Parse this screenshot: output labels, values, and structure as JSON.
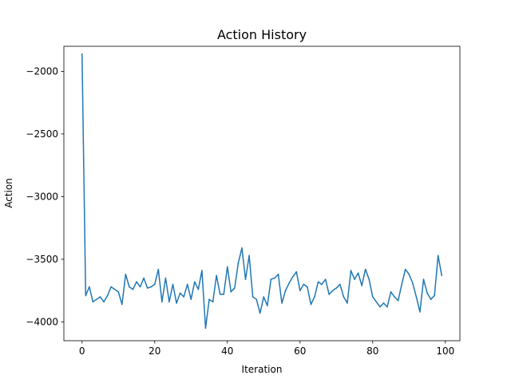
{
  "chart_data": {
    "type": "line",
    "title": "Action History",
    "xlabel": "Iteration",
    "ylabel": "Action",
    "xlim": [
      -5,
      104
    ],
    "ylim": [
      -4150,
      -1800
    ],
    "xticks": [
      0,
      20,
      40,
      60,
      80,
      100
    ],
    "yticks": [
      -4000,
      -3500,
      -3000,
      -2500,
      -2000
    ],
    "grid": false,
    "series": [
      {
        "color": "#1f77b4",
        "x": [
          0,
          1,
          2,
          3,
          4,
          5,
          6,
          7,
          8,
          9,
          10,
          11,
          12,
          13,
          14,
          15,
          16,
          17,
          18,
          19,
          20,
          21,
          22,
          23,
          24,
          25,
          26,
          27,
          28,
          29,
          30,
          31,
          32,
          33,
          34,
          35,
          36,
          37,
          38,
          39,
          40,
          41,
          42,
          43,
          44,
          45,
          46,
          47,
          48,
          49,
          50,
          51,
          52,
          53,
          54,
          55,
          56,
          57,
          58,
          59,
          60,
          61,
          62,
          63,
          64,
          65,
          66,
          67,
          68,
          69,
          70,
          71,
          72,
          73,
          74,
          75,
          76,
          77,
          78,
          79,
          80,
          81,
          82,
          83,
          84,
          85,
          86,
          87,
          88,
          89,
          90,
          91,
          92,
          93,
          94,
          95,
          96,
          97,
          98,
          99
        ],
        "values": [
          -1860,
          -3790,
          -3720,
          -3840,
          -3820,
          -3800,
          -3840,
          -3790,
          -3720,
          -3740,
          -3760,
          -3860,
          -3620,
          -3720,
          -3740,
          -3680,
          -3720,
          -3650,
          -3730,
          -3720,
          -3700,
          -3580,
          -3840,
          -3650,
          -3840,
          -3700,
          -3850,
          -3770,
          -3800,
          -3700,
          -3820,
          -3680,
          -3740,
          -3590,
          -4050,
          -3820,
          -3840,
          -3630,
          -3780,
          -3780,
          -3560,
          -3760,
          -3730,
          -3530,
          -3410,
          -3660,
          -3470,
          -3800,
          -3820,
          -3930,
          -3800,
          -3870,
          -3660,
          -3650,
          -3620,
          -3850,
          -3750,
          -3690,
          -3640,
          -3600,
          -3750,
          -3700,
          -3720,
          -3860,
          -3800,
          -3680,
          -3700,
          -3660,
          -3780,
          -3750,
          -3730,
          -3700,
          -3800,
          -3850,
          -3590,
          -3660,
          -3610,
          -3710,
          -3580,
          -3660,
          -3800,
          -3840,
          -3880,
          -3850,
          -3880,
          -3760,
          -3800,
          -3830,
          -3700,
          -3580,
          -3620,
          -3690,
          -3800,
          -3920,
          -3660,
          -3770,
          -3820,
          -3790,
          -3470,
          -3630
        ]
      }
    ]
  }
}
